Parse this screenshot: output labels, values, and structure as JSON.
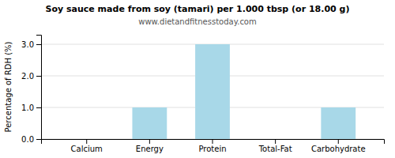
{
  "chart_data": {
    "type": "bar",
    "title": "Soy sauce made from soy (tamari) per 1.000 tbsp (or 18.00 g)",
    "subtitle": "www.dietandfitnesstoday.com",
    "ylabel": "Percentage of RDH (%)",
    "categories": [
      "Calcium",
      "Energy",
      "Protein",
      "Total-Fat",
      "Carbohydrate"
    ],
    "values": [
      0.0,
      1.0,
      3.0,
      0.0,
      1.0
    ],
    "color": "#a8d8e8",
    "ylim": [
      0,
      3.3
    ],
    "yticks": [
      {
        "value": 0.0,
        "label": "0.0"
      },
      {
        "value": 1.0,
        "label": "1.0"
      },
      {
        "value": 2.0,
        "label": "2.0"
      },
      {
        "value": 3.0,
        "label": "3.0"
      }
    ],
    "grid": true
  }
}
